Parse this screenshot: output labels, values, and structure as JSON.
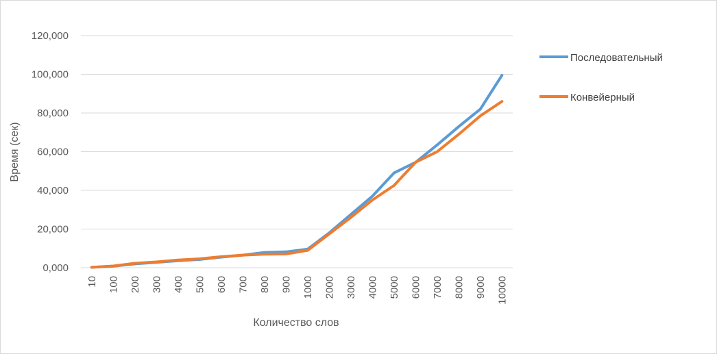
{
  "chart_data": {
    "type": "line",
    "xlabel": "Количество слов",
    "ylabel": "Время (сек)",
    "ylim": [
      0,
      120
    ],
    "y_ticks": [
      "0,000",
      "20,000",
      "40,000",
      "60,000",
      "80,000",
      "100,000",
      "120,000"
    ],
    "categories": [
      "10",
      "100",
      "200",
      "300",
      "400",
      "500",
      "600",
      "700",
      "800",
      "900",
      "1000",
      "2000",
      "3000",
      "4000",
      "5000",
      "6000",
      "7000",
      "8000",
      "9000",
      "10000"
    ],
    "grid": true,
    "legend_position": "right",
    "series": [
      {
        "name": "Последовательный",
        "color": "#5B9BD5",
        "values": [
          0.2,
          0.8,
          2.0,
          2.8,
          3.6,
          4.3,
          5.5,
          6.5,
          7.9,
          8.2,
          9.6,
          18.0,
          27.5,
          37.0,
          49.0,
          54.5,
          63.5,
          73.0,
          82.0,
          99.5
        ]
      },
      {
        "name": "Конвейерный",
        "color": "#ED7D31",
        "values": [
          0.2,
          0.9,
          2.3,
          3.0,
          4.0,
          4.6,
          5.7,
          6.5,
          7.0,
          7.1,
          9.0,
          17.5,
          26.0,
          35.0,
          42.5,
          54.5,
          60.0,
          69.0,
          78.5,
          86.0
        ]
      }
    ]
  }
}
